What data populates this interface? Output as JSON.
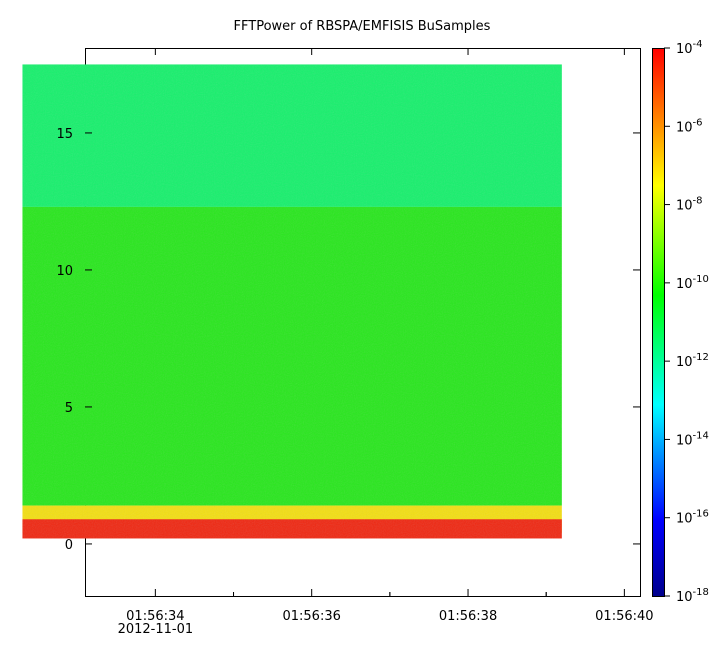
{
  "chart_data": {
    "type": "heatmap",
    "title": "FFTPower of RBSPA/EMFISIS  BuSamples",
    "xlabel": "",
    "ylabel": "",
    "x_range": [
      "01:56:32.3",
      "01:56:39.2"
    ],
    "xlim": [
      "01:56:33.1",
      "01:56:40.2"
    ],
    "ylim": [
      -1.9,
      18.1
    ],
    "x_ticks": [
      {
        "value": "01:56:34",
        "label": "01:56:34",
        "sublabel": "2012-11-01"
      },
      {
        "value": "01:56:36",
        "label": "01:56:36",
        "sublabel": ""
      },
      {
        "value": "01:56:38",
        "label": "01:56:38",
        "sublabel": ""
      },
      {
        "value": "01:56:40",
        "label": "01:56:40",
        "sublabel": ""
      }
    ],
    "y_ticks": [
      0,
      5,
      10,
      15
    ],
    "y_data_range": [
      0,
      17.5
    ],
    "bands": [
      {
        "y_from": 12.3,
        "y_to": 17.5,
        "level": "1e-12",
        "color": "#1aef6e"
      },
      {
        "y_from": 1.4,
        "y_to": 12.3,
        "level": "1e-10",
        "color": "#2be620"
      },
      {
        "y_from": 0.4,
        "y_to": 1.4,
        "level": "1e-8",
        "color": "#f2de16"
      },
      {
        "y_from": 0.2,
        "y_to": 0.9,
        "level": "1e-5",
        "color": "#ee2b16"
      }
    ],
    "colorbar": {
      "scale": "log",
      "min": "1e-18",
      "max": "1e-4",
      "labels": [
        {
          "base": "10",
          "exp": "-4",
          "log": -4
        },
        {
          "base": "10",
          "exp": "-6",
          "log": -6
        },
        {
          "base": "10",
          "exp": "-8",
          "log": -8
        },
        {
          "base": "10",
          "exp": "-10",
          "log": -10
        },
        {
          "base": "10",
          "exp": "-12",
          "log": -12
        },
        {
          "base": "10",
          "exp": "-14",
          "log": -14
        },
        {
          "base": "10",
          "exp": "-16",
          "log": -16
        },
        {
          "base": "10",
          "exp": "-18",
          "log": -18
        }
      ],
      "colors": [
        "#00008c",
        "#0000ff",
        "#00ffff",
        "#00ff00",
        "#ffff00",
        "#ff0000"
      ]
    }
  }
}
